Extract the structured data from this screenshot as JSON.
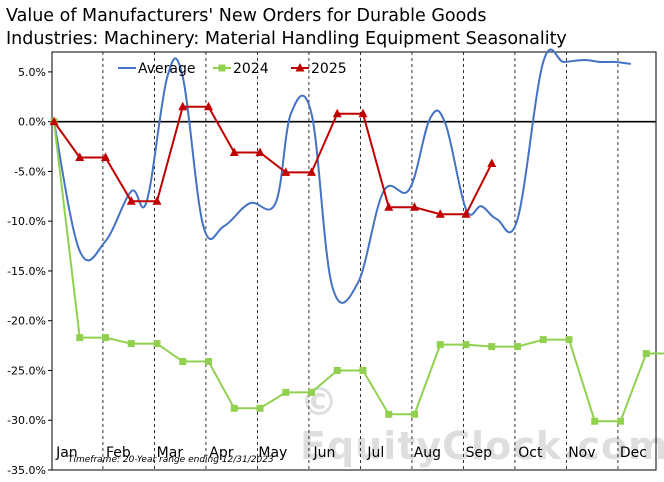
{
  "title_line1": "Value of Manufacturers'  New Orders for Durable Goods",
  "title_line2": "Industries: Machinery: Material Handling Equipment Seasonality",
  "footnote": "Timeframe: 20-Year range ending 12/31/2023",
  "watermark": "© EquityClock.com",
  "colors": {
    "average": "#4472c4",
    "y2024": "#92d050",
    "y2025": "#c00000",
    "zero": "#000000",
    "grid": "#000000"
  },
  "chart_data": {
    "type": "line",
    "title": "Value of Manufacturers'  New Orders for Durable Goods Industries: Machinery: Material Handling Equipment Seasonality",
    "months": [
      "Jan",
      "Feb",
      "Mar",
      "Apr",
      "May",
      "Jun",
      "Jul",
      "Aug",
      "Sep",
      "Oct",
      "Nov",
      "Dec"
    ],
    "y_ticks": [
      "5.0%",
      "0.0%",
      "-5.0%",
      "-10.0%",
      "-15.0%",
      "-20.0%",
      "-25.0%",
      "-30.0%",
      "-35.0%"
    ],
    "ylim": [
      -35,
      7
    ],
    "legend_position": "top",
    "grid": "vertical dashed month separators",
    "series": [
      {
        "name": "Average",
        "x": [
          0,
          0.5,
          1,
          1.5,
          1.8,
          2.2,
          2.5,
          2.9,
          3.3,
          3.8,
          4.3,
          4.6,
          5.0,
          5.4,
          5.9,
          6.4,
          6.9,
          7.3,
          7.6,
          8.0,
          8.3,
          8.6,
          9.0,
          9.5,
          9.9,
          10.3,
          10.6,
          10.9,
          11.2
        ],
        "values": [
          0,
          -13.0,
          -12.0,
          -7.0,
          -8.0,
          4.5,
          4.5,
          -10.5,
          -10.5,
          -8.2,
          -8.2,
          0.8,
          0.8,
          -16.5,
          -16.2,
          -7.0,
          -6.8,
          0.3,
          -0.2,
          -8.8,
          -8.5,
          -9.8,
          -9.8,
          6.0,
          6.0,
          6.2,
          6.0,
          6.0,
          5.8
        ]
      },
      {
        "name": "2024",
        "x": [
          0,
          0.5,
          1,
          1.5,
          2,
          2.5,
          3,
          3.5,
          4,
          4.5,
          5,
          5.5,
          6,
          6.5,
          7,
          7.5,
          8,
          8.5,
          9,
          9.5,
          10,
          10.5,
          11,
          11.5,
          12
        ],
        "values": [
          0,
          -21.7,
          -21.7,
          -22.3,
          -22.3,
          -24.1,
          -24.1,
          -28.8,
          -28.8,
          -27.2,
          -27.2,
          -25.0,
          -25.0,
          -29.4,
          -29.4,
          -22.4,
          -22.4,
          -22.6,
          -22.6,
          -21.9,
          -21.9,
          -30.1,
          -30.1,
          -23.3,
          -23.3
        ]
      },
      {
        "name": "2025",
        "x": [
          0,
          0.5,
          1,
          1.5,
          2,
          2.5,
          3,
          3.5,
          4,
          4.5,
          5,
          5.5,
          6,
          6.5,
          7,
          7.5,
          8,
          8.5
        ],
        "values": [
          0,
          -3.6,
          -3.6,
          -8.0,
          -8.0,
          1.5,
          1.5,
          -3.1,
          -3.1,
          -5.1,
          -5.1,
          0.8,
          0.8,
          -8.6,
          -8.6,
          -9.3,
          -9.3,
          -4.2
        ]
      }
    ]
  }
}
